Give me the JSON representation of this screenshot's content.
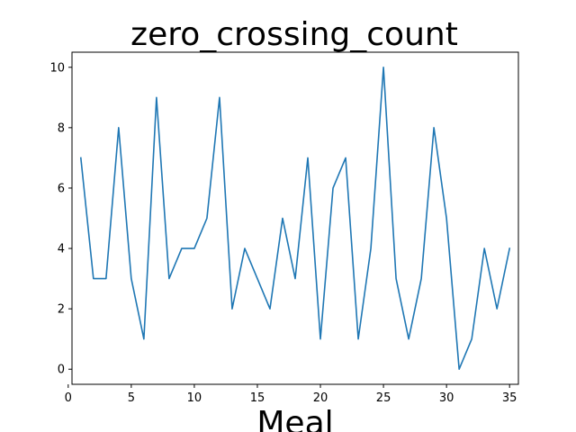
{
  "chart_data": {
    "type": "line",
    "title": "zero_crossing_count",
    "xlabel": "Meal",
    "ylabel": "",
    "xlim": [
      0.3,
      35.7
    ],
    "ylim": [
      -0.5,
      10.5
    ],
    "xticks": [
      0,
      5,
      10,
      15,
      20,
      25,
      30,
      35
    ],
    "yticks": [
      0,
      2,
      4,
      6,
      8,
      10
    ],
    "grid": false,
    "legend": "none",
    "series": [
      {
        "color": "#1f77b4",
        "x": [
          1,
          2,
          3,
          4,
          5,
          6,
          7,
          8,
          9,
          10,
          11,
          12,
          13,
          14,
          15,
          16,
          17,
          18,
          19,
          20,
          21,
          22,
          23,
          24,
          25,
          26,
          27,
          28,
          29,
          30,
          31,
          32,
          33,
          34,
          35
        ],
        "y": [
          7,
          3,
          3,
          8,
          3,
          1,
          9,
          3,
          4,
          4,
          5,
          9,
          2,
          4,
          3,
          2,
          5,
          3,
          7,
          1,
          6,
          7,
          1,
          4,
          10,
          3,
          1,
          3,
          8,
          5,
          0,
          1,
          4,
          2,
          4
        ]
      }
    ]
  }
}
